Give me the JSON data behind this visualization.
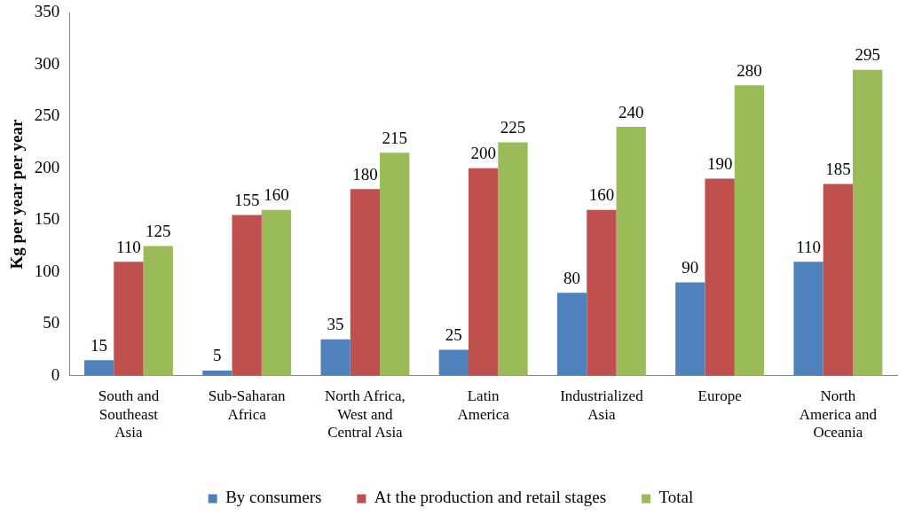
{
  "chart_data": {
    "type": "bar",
    "ylabel": "Kg per year per year",
    "categories": [
      "South and Southeast Asia",
      "Sub-Saharan Africa",
      "North Africa, West and Central Asia",
      "Latin America",
      "Industrialized Asia",
      "Europe",
      "North America and Oceania"
    ],
    "series": [
      {
        "name": "By consumers",
        "color": "#4f81bd",
        "values": [
          15,
          5,
          35,
          25,
          80,
          90,
          110
        ]
      },
      {
        "name": "At the production and retail stages",
        "color": "#c0504d",
        "values": [
          110,
          155,
          180,
          200,
          160,
          190,
          185
        ]
      },
      {
        "name": "Total",
        "color": "#9bbb59",
        "values": [
          125,
          160,
          215,
          225,
          240,
          280,
          295
        ]
      }
    ],
    "ylim": [
      0,
      350
    ],
    "yticks": [
      0,
      50,
      100,
      150,
      200,
      250,
      300,
      350
    ],
    "grid": false,
    "legend": "bottom",
    "data_labels": true
  }
}
